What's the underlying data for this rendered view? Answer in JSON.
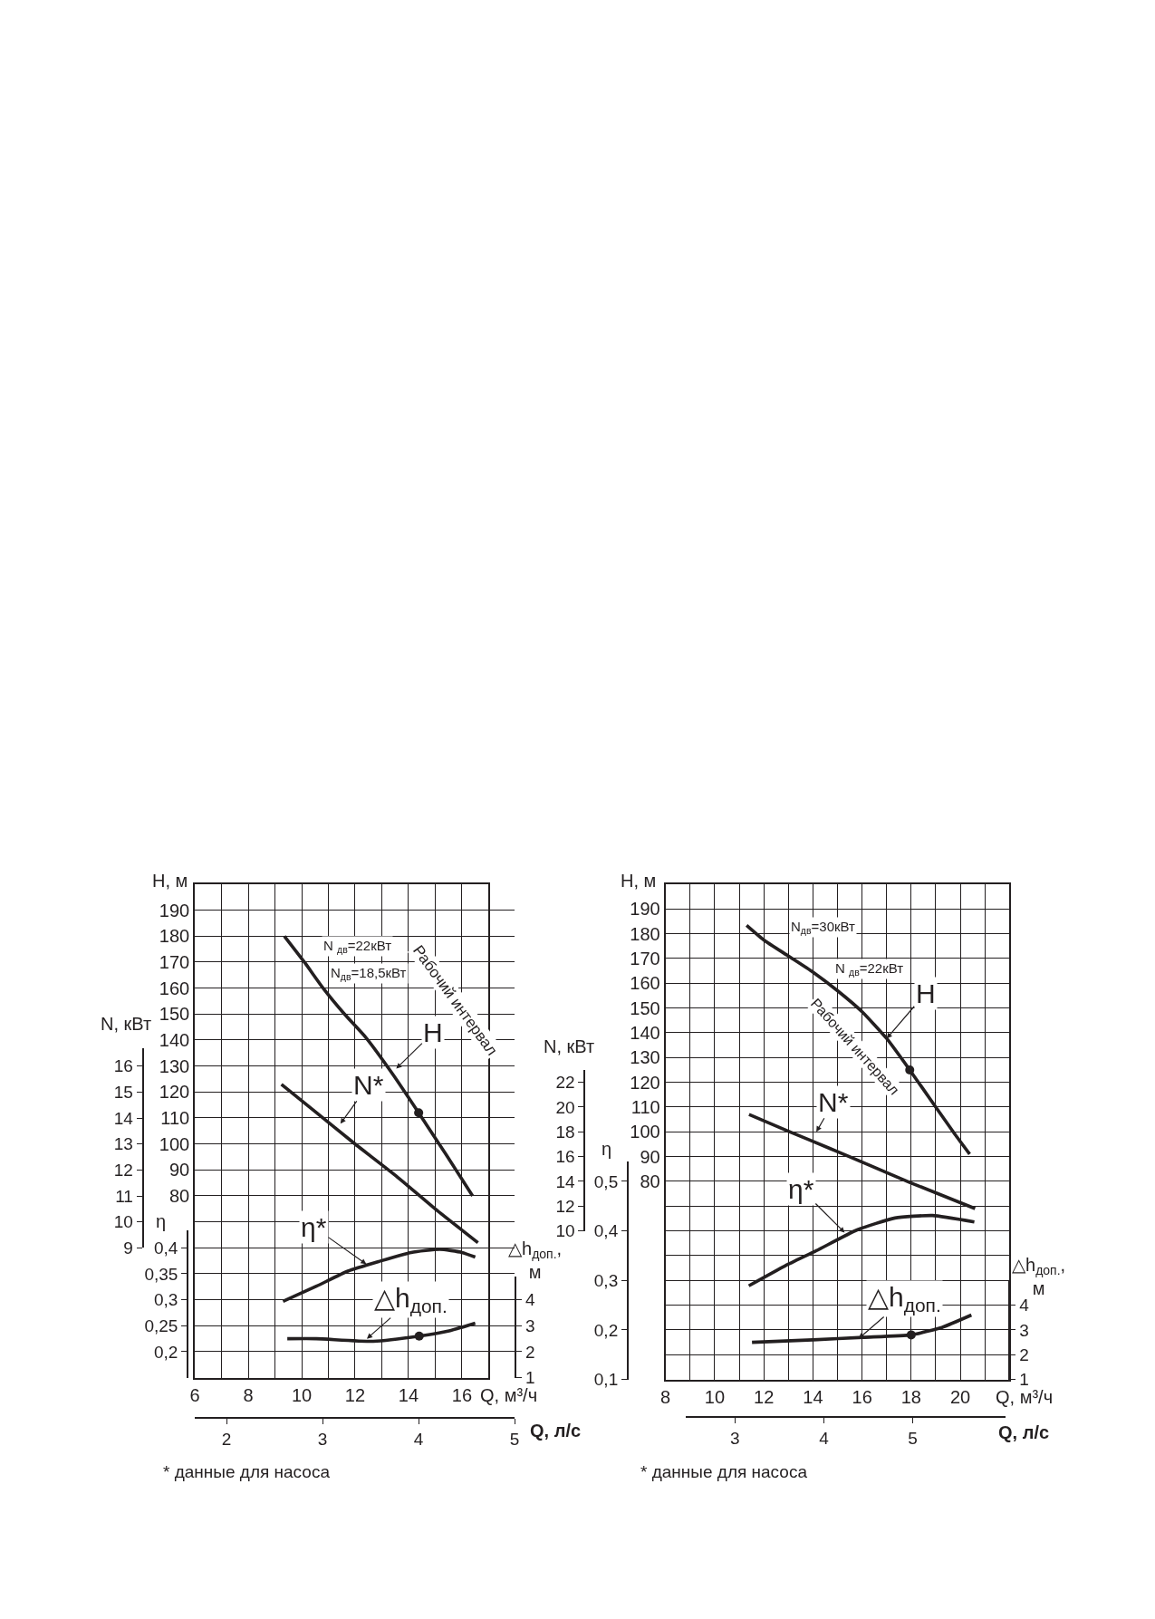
{
  "chart_data": [
    {
      "type": "line",
      "xlabel": "Q, м³/ч",
      "x2label": "Q, л/с",
      "ylabel": "H, м",
      "y2label": "N, кВт",
      "y3label": "η",
      "xlim": [
        6,
        17
      ],
      "xticks": [
        6,
        {
          "value": 7,
          "label": null
        },
        8,
        {
          "value": 9,
          "label": null
        },
        10,
        {
          "value": 11,
          "label": null
        },
        12,
        {
          "value": 13,
          "label": null
        },
        14,
        {
          "value": 15,
          "label": null
        },
        16,
        {
          "value": 17,
          "label": null
        }
      ],
      "x2lim": [
        1.67,
        5.0
      ],
      "x2ticks": [
        2,
        3,
        4,
        5
      ],
      "ylim": [
        10,
        200
      ],
      "yticks": [
        {
          "value": 20,
          "label": null
        },
        {
          "value": 30,
          "label": null
        },
        {
          "value": 40,
          "label": null
        },
        {
          "value": 50,
          "label": null
        },
        {
          "value": 60,
          "label": null
        },
        {
          "value": 70,
          "label": null
        },
        80,
        90,
        100,
        110,
        120,
        130,
        140,
        150,
        160,
        170,
        180,
        190,
        {
          "value": 200,
          "label": null
        }
      ],
      "y2lim": [
        9,
        16.7
      ],
      "y2ticks": [
        9,
        10,
        11,
        12,
        13,
        14,
        15,
        16
      ],
      "y3lim": [
        0.15,
        0.434
      ],
      "y3ticks": [
        {
          "value": 0.2,
          "label": "0,2"
        },
        {
          "value": 0.25,
          "label": "0,25"
        },
        {
          "value": 0.3,
          "label": "0,3"
        },
        {
          "value": 0.35,
          "label": "0,35"
        },
        {
          "value": 0.4,
          "label": "0,4"
        }
      ],
      "grid": true,
      "series": [
        {
          "axis": "y",
          "color": "#231f20",
          "x": [
            9.35,
            10.1,
            10.8,
            11.6,
            12.4,
            13.4,
            14.38,
            15.4,
            16.4
          ],
          "values": [
            180,
            170,
            160,
            150,
            141,
            127,
            112,
            96,
            80
          ]
        },
        {
          "axis": "y2",
          "color": "#231f20",
          "x": [
            9.24,
            10.5,
            12.0,
            13.5,
            15.0,
            16.6
          ],
          "values": [
            15.3,
            14.25,
            13.0,
            11.8,
            10.5,
            9.2
          ]
        },
        {
          "axis": "y3",
          "color": "#231f20",
          "x": [
            9.3,
            10.55,
            11.73,
            12.92,
            14.1,
            15.17,
            16.0,
            16.5
          ],
          "values": [
            0.297,
            0.326,
            0.355,
            0.374,
            0.391,
            0.397,
            0.391,
            0.382
          ]
        },
        {
          "type": "scatter",
          "axis": "y",
          "color": "#231f20",
          "marker": "circle",
          "x": [
            14.38
          ],
          "values": [
            112
          ]
        }
      ],
      "annotations": [
        {
          "text": "H",
          "x": 13.54,
          "y": 129
        },
        "N*",
        {
          "text": "η*",
          "x": 12.42,
          "y": 53.7
        },
        "N $_{дв}$=22кВт",
        "N$_{дв}$=18,5кВт",
        "Рабочий интервал",
        "* данные для насоса"
      ]
    },
    {
      "type": "line",
      "ylabel": "△h$_{доп.}$,\nм",
      "tick_labels": "y",
      "xlim": [
        6,
        17
      ],
      "ylim": [
        1,
        4.9
      ],
      "yticks": [
        1,
        2,
        3,
        4
      ],
      "series": [
        {
          "color": "#231f20",
          "x": [
            9.46,
            10.55,
            12.68,
            14.4,
            15.52,
            16.5
          ],
          "values": [
            2.5,
            2.5,
            2.4,
            2.6,
            2.8,
            3.1
          ]
        },
        {
          "type": "scatter",
          "color": "#231f20",
          "marker": "circle",
          "x": [
            14.4
          ],
          "values": [
            2.6
          ]
        }
      ],
      "annotations": [
        {
          "text": "△h$_{доп.}$",
          "x": 12.44,
          "y": 2.5
        }
      ]
    },
    {
      "type": "line",
      "xlabel": "Q, м³/ч",
      "x2label": "Q, л/с",
      "ylabel": "H, м",
      "y2label": "N, кВт",
      "y3label": "η",
      "xlim": [
        8,
        22
      ],
      "xticks": [
        8,
        {
          "value": 9,
          "label": null
        },
        10,
        {
          "value": 11,
          "label": null
        },
        12,
        {
          "value": 13,
          "label": null
        },
        14,
        {
          "value": 15,
          "label": null
        },
        16,
        {
          "value": 17,
          "label": null
        },
        18,
        {
          "value": 19,
          "label": null
        },
        20,
        {
          "value": 21,
          "label": null
        },
        {
          "value": 22,
          "label": null
        }
      ],
      "x2lim": [
        2.45,
        6.05
      ],
      "x2ticks": [
        3,
        4,
        5
      ],
      "ylim": [
        0,
        200
      ],
      "yticks": [
        {
          "value": 10,
          "label": null
        },
        {
          "value": 20,
          "label": null
        },
        {
          "value": 30,
          "label": null
        },
        {
          "value": 40,
          "label": null
        },
        {
          "value": 50,
          "label": null
        },
        {
          "value": 60,
          "label": null
        },
        {
          "value": 70,
          "label": null
        },
        80,
        90,
        100,
        110,
        120,
        130,
        140,
        150,
        160,
        170,
        180,
        190,
        {
          "value": 200,
          "label": null
        }
      ],
      "y2lim": [
        10,
        23
      ],
      "y2ticks": [
        10,
        12,
        14,
        16,
        18,
        20,
        22
      ],
      "y3lim": [
        0.1,
        0.54
      ],
      "y3ticks": [
        {
          "value": 0.1,
          "label": "0,1"
        },
        {
          "value": 0.2,
          "label": "0,2"
        },
        {
          "value": 0.3,
          "label": "0,3"
        },
        {
          "value": 0.4,
          "label": "0,4"
        },
        {
          "value": 0.5,
          "label": "0,5"
        }
      ],
      "grid": true,
      "series": [
        {
          "axis": "y",
          "color": "#231f20",
          "x": [
            11.3,
            12.0,
            13.0,
            14.0,
            15.0,
            16.0,
            17.0,
            17.94,
            19.0,
            19.78,
            20.38
          ],
          "values": [
            183.4,
            177.5,
            171,
            164.5,
            157,
            148.5,
            137.7,
            125,
            110,
            99,
            91
          ]
        },
        {
          "axis": "y2",
          "color": "#231f20",
          "x": [
            11.4,
            13.0,
            14.7,
            16.3,
            17.96,
            20.6
          ],
          "values": [
            19.4,
            18.05,
            16.65,
            15.3,
            13.9,
            11.8
          ]
        },
        {
          "axis": "y3",
          "color": "#231f20",
          "x": [
            11.39,
            12.86,
            14.14,
            15.8,
            17.34,
            18.87,
            20.57
          ],
          "values": [
            0.289,
            0.329,
            0.36,
            0.402,
            0.426,
            0.431,
            0.418
          ]
        },
        {
          "type": "scatter",
          "axis": "y",
          "color": "#231f20",
          "marker": "circle",
          "x": [
            17.94
          ],
          "values": [
            125
          ]
        }
      ],
      "annotations": [
        {
          "text": "H",
          "x": 17.0,
          "y": 137.7
        },
        "N*",
        {
          "text": "η*",
          "x": 15.29,
          "y": 59.3
        },
        "N$_{дв}$=30кВт",
        "N $_{дв}$=22кВт",
        "Рабочий интервал",
        "* данные для насоса"
      ]
    },
    {
      "type": "line",
      "ylabel": "△h$_{доп.}$,\nм",
      "tick_labels": "y",
      "xlim": [
        8,
        22
      ],
      "ylim": [
        1,
        5
      ],
      "yticks": [
        1,
        2,
        3,
        4
      ],
      "series": [
        {
          "color": "#231f20",
          "x": [
            11.52,
            14.0,
            16.05,
            18.0,
            19.25,
            20.45
          ],
          "values": [
            2.5,
            2.6,
            2.7,
            2.8,
            3.1,
            3.6
          ]
        },
        {
          "type": "scatter",
          "color": "#231f20",
          "marker": "circle",
          "x": [
            18.0
          ],
          "values": [
            2.8
          ]
        }
      ],
      "annotations": [
        {
          "text": "△h$_{доп.}$",
          "x": 15.86,
          "y": 2.65
        }
      ]
    }
  ]
}
